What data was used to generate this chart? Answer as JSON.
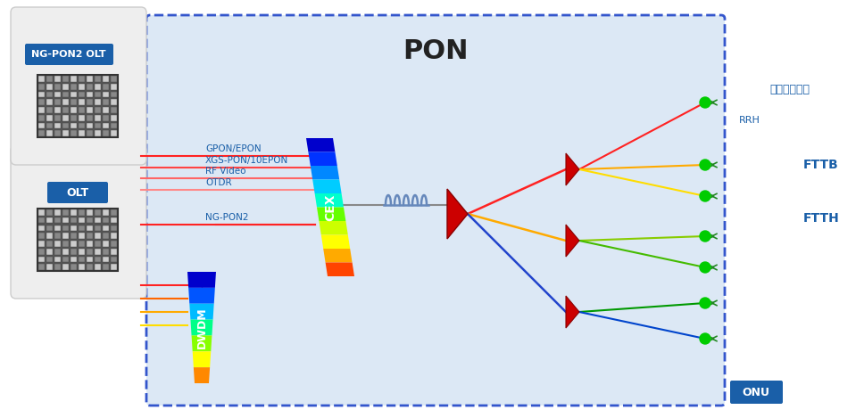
{
  "title": "PON",
  "bg_color": "#dce8f5",
  "box_bg": "#dce8f5",
  "olt_labels": [
    "OLT",
    "NG-PON2 OLT"
  ],
  "cex_labels": [
    "GPON/EPON",
    "XGS-PON/10EPON",
    "RF Video",
    "OTDR",
    "NG-PON2"
  ],
  "right_labels": [
    "移动通信基站",
    "FTTB",
    "FTTH",
    "ONU"
  ],
  "rrh_label": "RRH",
  "onu_label": "ONU",
  "line_colors_olt": [
    "#ff4444",
    "#ff6666",
    "#ff8888",
    "#ffaaaa",
    "#ffcccc"
  ],
  "line_colors_ngpon": [
    "#ff4444",
    "#ff6666",
    "#ffaa00",
    "#ffcc00"
  ],
  "splitter_color": "#cc0000",
  "prism_colors": [
    "#0000cc",
    "#0066ff",
    "#00aaff",
    "#00ddff",
    "#00ffcc",
    "#66ff00",
    "#aaff00",
    "#ffff00",
    "#ffaa00",
    "#ff6600",
    "#ff0000"
  ],
  "dwdm_colors": [
    "#0000cc",
    "#0066ff",
    "#00aaff",
    "#66ff00",
    "#ffff00",
    "#ffaa00",
    "#ff6600",
    "#ff0000"
  ],
  "text_color_blue": "#1a5fa8",
  "label_bg_blue": "#1a5fa8",
  "label_text_white": "#ffffff",
  "green_dot": "#00cc00",
  "dashed_border": "#3355cc"
}
